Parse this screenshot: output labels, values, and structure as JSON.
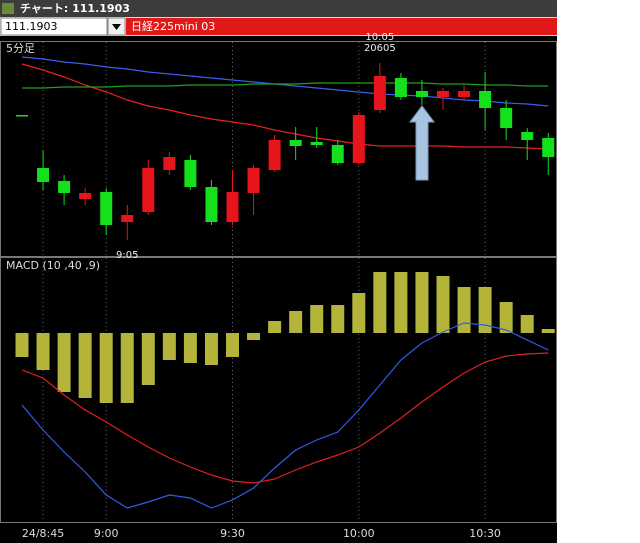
{
  "window": {
    "title": "チャート: 111.1903",
    "code": "111.1903",
    "instrument": "日経225mini 03"
  },
  "chart_data": [
    {
      "type": "candlestick",
      "title": "5分足",
      "categories": [
        null,
        "24/8:45",
        null,
        null,
        "9:00",
        null,
        null,
        null,
        null,
        null,
        "9:30",
        null,
        null,
        null,
        null,
        null,
        "10:00",
        null,
        null,
        null,
        null,
        null,
        "10:30",
        null,
        null,
        null
      ],
      "open": [
        20553,
        20500,
        20487,
        20469,
        20476,
        20446,
        20456,
        20498,
        20508,
        20481,
        20446,
        20475,
        20498,
        20528,
        20526,
        20523,
        20505,
        20558,
        20590,
        20577,
        20571,
        20571,
        20577,
        20560,
        20536,
        20530
      ],
      "high": [
        20553,
        20518,
        20493,
        20480,
        20480,
        20463,
        20508,
        20516,
        20513,
        20488,
        20498,
        20503,
        20533,
        20541,
        20541,
        20528,
        20556,
        20605,
        20595,
        20588,
        20580,
        20583,
        20596,
        20568,
        20540,
        20535
      ],
      "low": [
        20553,
        20478,
        20463,
        20463,
        20433,
        20428,
        20453,
        20493,
        20478,
        20443,
        20443,
        20453,
        20496,
        20508,
        20520,
        20503,
        20503,
        20555,
        20568,
        20563,
        20558,
        20568,
        20538,
        20528,
        20508,
        20493
      ],
      "close": [
        20553,
        20486,
        20475,
        20475,
        20443,
        20453,
        20500,
        20511,
        20481,
        20446,
        20476,
        20500,
        20528,
        20522,
        20523,
        20505,
        20553,
        20592,
        20571,
        20571,
        20577,
        20577,
        20560,
        20540,
        20528,
        20511
      ],
      "up_color": "#e8141c",
      "down_color": "#14e01c",
      "lines": [
        {
          "color": "#3a5cf0",
          "values": [
            20611,
            20609,
            20606,
            20604,
            20601,
            20599,
            20596,
            20594,
            20592,
            20590,
            20588,
            20586,
            20584,
            20582,
            20580,
            20578,
            20576,
            20574,
            20573,
            20572,
            20570,
            20568,
            20567,
            20565,
            20564,
            20562
          ]
        },
        {
          "color": "#e82020",
          "values": [
            20604,
            20598,
            20591,
            20583,
            20576,
            20568,
            20562,
            20558,
            20553,
            20549,
            20546,
            20543,
            20538,
            20534,
            20530,
            20527,
            20524,
            20522,
            20522,
            20522,
            20522,
            20521,
            20521,
            20521,
            20520,
            20519
          ]
        },
        {
          "color": "#20a020",
          "values": [
            20580,
            20580,
            20581,
            20581,
            20581,
            20582,
            20582,
            20582,
            20583,
            20583,
            20583,
            20584,
            20584,
            20584,
            20585,
            20585,
            20585,
            20585,
            20585,
            20585,
            20584,
            20584,
            20583,
            20583,
            20582,
            20582
          ]
        }
      ],
      "annotations": [
        {
          "text": "20605",
          "value": 20605
        },
        {
          "text": "10:05",
          "value": 20605
        },
        {
          "text": "9:05",
          "value": 20428
        }
      ],
      "ylim": [
        20411,
        20626
      ]
    },
    {
      "type": "macd",
      "title": "MACD (10 ,40 ,9)",
      "values": [
        -12,
        -18.5,
        -29.5,
        -32.5,
        -35,
        -35,
        -26,
        -13.5,
        -15,
        -16,
        -12,
        -3.5,
        6,
        11,
        14,
        14,
        20,
        30.5,
        30.5,
        30.5,
        28.5,
        23,
        23,
        15.5,
        9,
        2
      ],
      "color": "#b4b43a",
      "lines": [
        {
          "color": "#2f5ee8",
          "values": [
            -36,
            -48.5,
            -59.5,
            -69.5,
            -81,
            -87.5,
            -84.5,
            -81,
            -82.5,
            -87.5,
            -83.5,
            -77.5,
            -67.5,
            -58.5,
            -53.5,
            -49.5,
            -38.5,
            -26,
            -13.5,
            -5,
            0.5,
            5,
            4,
            1.5,
            -3.5,
            -8.5
          ]
        },
        {
          "color": "#e02020",
          "values": [
            -18.5,
            -22.5,
            -31,
            -38.5,
            -44.5,
            -51,
            -57,
            -62.5,
            -67,
            -71,
            -74,
            -75,
            -73,
            -68.5,
            -64.5,
            -61,
            -57,
            -50,
            -42.5,
            -34.5,
            -27,
            -20,
            -14.5,
            -11.5,
            -10.5,
            -10
          ]
        }
      ],
      "ylim": [
        -94.5,
        37.5
      ]
    }
  ]
}
